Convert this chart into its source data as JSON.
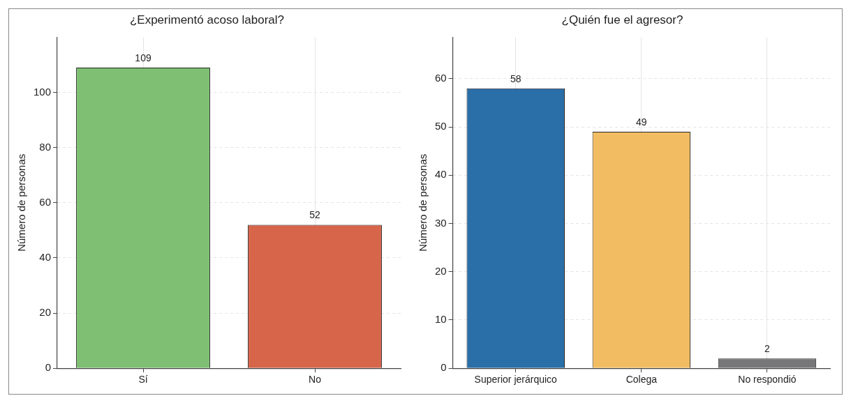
{
  "chart_data": [
    {
      "type": "bar",
      "title": "¿Experimentó acoso laboral?",
      "ylabel": "Número de personas",
      "categories": [
        "Sí",
        "No"
      ],
      "values": [
        109,
        52
      ],
      "colors": [
        "#7fbf73",
        "#d6654a"
      ],
      "ylim": [
        0,
        120
      ],
      "yticks": [
        0,
        20,
        40,
        60,
        80,
        100
      ],
      "grid": true,
      "data_labels": true,
      "legend": false
    },
    {
      "type": "bar",
      "title": "¿Quién fue el agresor?",
      "ylabel": "Número de personas",
      "categories": [
        "Superior jerárquico",
        "Colega",
        "No respondió"
      ],
      "values": [
        58,
        49,
        2
      ],
      "colors": [
        "#2a6fa8",
        "#f2bd62",
        "#77777a"
      ],
      "ylim": [
        0,
        68.6
      ],
      "yticks": [
        0,
        10,
        20,
        30,
        40,
        50,
        60
      ],
      "grid": true,
      "data_labels": true,
      "legend": false
    }
  ]
}
